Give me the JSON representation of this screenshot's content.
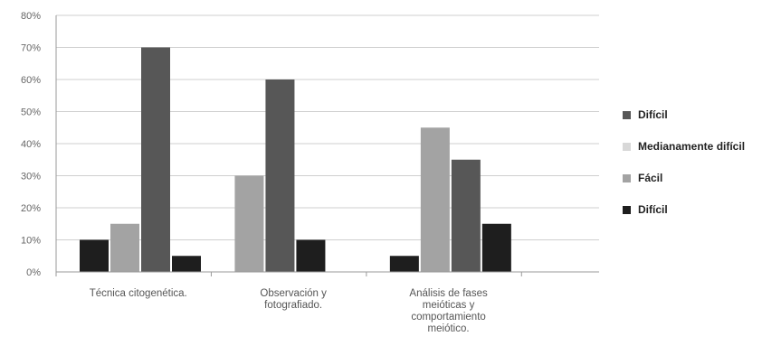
{
  "chart_data": {
    "type": "bar",
    "categories": [
      [
        "Técnica citogenética."
      ],
      [
        "Observación y",
        "fotografiado."
      ],
      [
        "Análisis de fases",
        "meióticas y",
        "comportamiento",
        "meiótico."
      ]
    ],
    "series": [
      {
        "name": "Difícil",
        "color": "#1e1e1e",
        "values": [
          10,
          0,
          5
        ]
      },
      {
        "name": "Fácil",
        "color": "#a3a3a3",
        "values": [
          15,
          30,
          45
        ]
      },
      {
        "name": "Medianamente difícil",
        "color": "#d8d8d8",
        "values": [
          0,
          0,
          0
        ]
      },
      {
        "name": "Difícil",
        "color": "#575757",
        "values": [
          70,
          60,
          35
        ]
      },
      {
        "name": "",
        "color": "#1e1e1e",
        "values": [
          5,
          10,
          15
        ]
      }
    ],
    "ylim": [
      0,
      80
    ],
    "yticks": [
      "0%",
      "10%",
      "20%",
      "30%",
      "40%",
      "50%",
      "60%",
      "70%",
      "80%"
    ],
    "grid": true,
    "legend_position": "right",
    "legend": [
      {
        "label": "Difícil",
        "color": "#575757"
      },
      {
        "label": "Medianamente difícil",
        "color": "#d8d8d8"
      },
      {
        "label": "Fácil",
        "color": "#a3a3a3"
      },
      {
        "label": "Difícil",
        "color": "#1e1e1e"
      }
    ]
  }
}
